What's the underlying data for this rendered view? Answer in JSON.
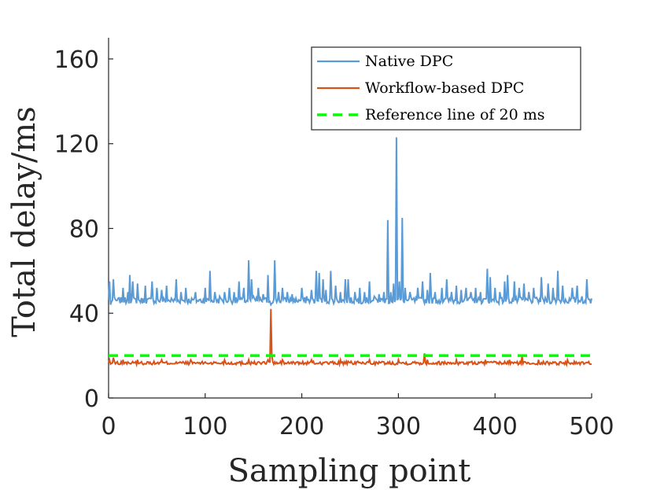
{
  "chart_data": {
    "type": "line",
    "title": "",
    "xlabel": "Sampling point",
    "ylabel": "Total delay/ms",
    "xlim": [
      0,
      500
    ],
    "ylim": [
      0,
      170
    ],
    "xticks": [
      0,
      100,
      200,
      300,
      400,
      500
    ],
    "yticks": [
      0,
      40,
      80,
      120,
      160
    ],
    "xtick_labels": [
      "0",
      "100",
      "200",
      "300",
      "400",
      "500"
    ],
    "ytick_labels": [
      "0",
      "40",
      "80",
      "120",
      "160"
    ],
    "grid": false,
    "legend_position": "top-right",
    "series": [
      {
        "name": "Native DPC",
        "color": "#5b9bd5",
        "baseline": 46,
        "noise": 1.5,
        "spike_points": [
          [
            1,
            55
          ],
          [
            2,
            44
          ],
          [
            5,
            56
          ],
          [
            8,
            46
          ],
          [
            15,
            52
          ],
          [
            20,
            50
          ],
          [
            22,
            58
          ],
          [
            25,
            55
          ],
          [
            30,
            54
          ],
          [
            38,
            53
          ],
          [
            45,
            55
          ],
          [
            50,
            52
          ],
          [
            55,
            51
          ],
          [
            60,
            53
          ],
          [
            70,
            56
          ],
          [
            75,
            50
          ],
          [
            80,
            52
          ],
          [
            90,
            50
          ],
          [
            100,
            52
          ],
          [
            105,
            60
          ],
          [
            110,
            50
          ],
          [
            115,
            48
          ],
          [
            120,
            50
          ],
          [
            125,
            52
          ],
          [
            130,
            50
          ],
          [
            135,
            55
          ],
          [
            140,
            52
          ],
          [
            145,
            65
          ],
          [
            148,
            56
          ],
          [
            150,
            48
          ],
          [
            155,
            52
          ],
          [
            160,
            49
          ],
          [
            165,
            58
          ],
          [
            168,
            44
          ],
          [
            172,
            65
          ],
          [
            176,
            50
          ],
          [
            180,
            52
          ],
          [
            185,
            50
          ],
          [
            190,
            49
          ],
          [
            200,
            52
          ],
          [
            205,
            48
          ],
          [
            210,
            51
          ],
          [
            215,
            60
          ],
          [
            218,
            59
          ],
          [
            222,
            56
          ],
          [
            225,
            51
          ],
          [
            230,
            60
          ],
          [
            235,
            53
          ],
          [
            240,
            50
          ],
          [
            245,
            56
          ],
          [
            248,
            56
          ],
          [
            255,
            50
          ],
          [
            260,
            52
          ],
          [
            265,
            50
          ],
          [
            270,
            55
          ],
          [
            275,
            48
          ],
          [
            280,
            49
          ],
          [
            285,
            50
          ],
          [
            289,
            84
          ],
          [
            292,
            50
          ],
          [
            295,
            54
          ],
          [
            298,
            123
          ],
          [
            301,
            55
          ],
          [
            304,
            85
          ],
          [
            307,
            52
          ],
          [
            312,
            50
          ],
          [
            320,
            52
          ],
          [
            325,
            55
          ],
          [
            330,
            51
          ],
          [
            333,
            59
          ],
          [
            338,
            50
          ],
          [
            345,
            52
          ],
          [
            350,
            56
          ],
          [
            355,
            50
          ],
          [
            360,
            53
          ],
          [
            365,
            51
          ],
          [
            370,
            52
          ],
          [
            375,
            50
          ],
          [
            380,
            52
          ],
          [
            385,
            50
          ],
          [
            392,
            61
          ],
          [
            395,
            57
          ],
          [
            400,
            52
          ],
          [
            405,
            50
          ],
          [
            410,
            55
          ],
          [
            413,
            58
          ],
          [
            420,
            55
          ],
          [
            425,
            52
          ],
          [
            430,
            54
          ],
          [
            435,
            50
          ],
          [
            440,
            52
          ],
          [
            448,
            57
          ],
          [
            455,
            54
          ],
          [
            460,
            52
          ],
          [
            465,
            60
          ],
          [
            470,
            53
          ],
          [
            480,
            52
          ],
          [
            485,
            53
          ],
          [
            490,
            48
          ],
          [
            495,
            56
          ],
          [
            500,
            47
          ]
        ]
      },
      {
        "name": "Workflow-based DPC",
        "color": "#d95319",
        "baseline": 16.5,
        "noise": 0.8,
        "spike_points": [
          [
            1,
            18
          ],
          [
            2,
            16
          ],
          [
            5,
            19
          ],
          [
            10,
            16
          ],
          [
            15,
            18
          ],
          [
            20,
            17
          ],
          [
            30,
            18
          ],
          [
            40,
            17
          ],
          [
            55,
            18
          ],
          [
            70,
            17
          ],
          [
            85,
            18
          ],
          [
            100,
            17
          ],
          [
            120,
            18
          ],
          [
            130,
            16
          ],
          [
            145,
            18
          ],
          [
            160,
            17
          ],
          [
            165,
            18
          ],
          [
            167,
            17
          ],
          [
            168,
            42
          ],
          [
            169,
            20
          ],
          [
            170,
            17
          ],
          [
            180,
            18
          ],
          [
            195,
            17
          ],
          [
            210,
            18
          ],
          [
            225,
            17
          ],
          [
            240,
            18
          ],
          [
            255,
            17
          ],
          [
            270,
            18
          ],
          [
            285,
            17
          ],
          [
            300,
            18
          ],
          [
            315,
            17
          ],
          [
            327,
            21
          ],
          [
            330,
            18
          ],
          [
            345,
            17
          ],
          [
            360,
            18
          ],
          [
            375,
            17
          ],
          [
            390,
            18
          ],
          [
            400,
            17
          ],
          [
            415,
            18
          ],
          [
            428,
            20
          ],
          [
            445,
            18
          ],
          [
            460,
            17
          ],
          [
            475,
            18
          ],
          [
            490,
            17
          ],
          [
            500,
            16
          ]
        ]
      },
      {
        "name": "Reference line of 20 ms",
        "color": "#00ff00",
        "style": "dashed",
        "y": 20
      }
    ]
  }
}
